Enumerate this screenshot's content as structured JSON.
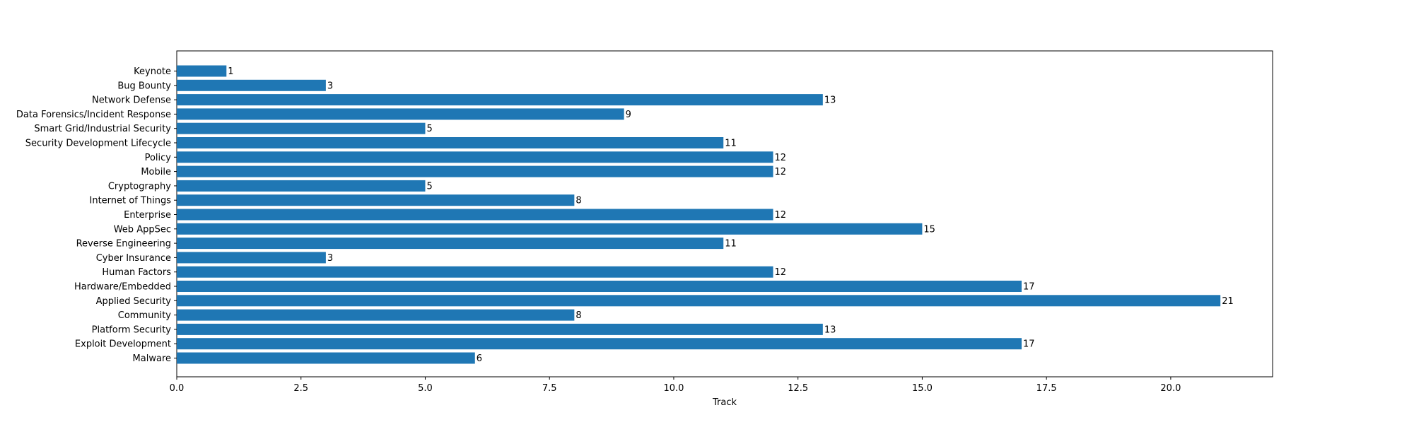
{
  "chart_data": {
    "type": "bar",
    "orientation": "horizontal",
    "categories": [
      "Keynote",
      "Bug Bounty",
      "Network Defense",
      "Data Forensics/Incident Response",
      "Smart Grid/Industrial Security",
      "Security Development Lifecycle",
      "Policy",
      "Mobile",
      "Cryptography",
      "Internet of Things",
      "Enterprise",
      "Web AppSec",
      "Reverse Engineering",
      "Cyber Insurance",
      "Human Factors",
      "Hardware/Embedded",
      "Applied Security",
      "Community",
      "Platform Security",
      "Exploit Development",
      "Malware"
    ],
    "values": [
      1,
      3,
      13,
      9,
      5,
      11,
      12,
      12,
      5,
      8,
      12,
      15,
      11,
      3,
      12,
      17,
      21,
      8,
      13,
      17,
      6
    ],
    "xlabel": "Track",
    "ylabel": "",
    "title": "",
    "xlim": [
      0,
      22.05
    ],
    "xticks": [
      "0.0",
      "2.5",
      "5.0",
      "7.5",
      "10.0",
      "12.5",
      "15.0",
      "17.5",
      "20.0"
    ],
    "xtick_values": [
      0,
      2.5,
      5,
      7.5,
      10,
      12.5,
      15,
      17.5,
      20
    ],
    "bar_color": "#1f77b4",
    "grid": false,
    "legend": "none"
  }
}
